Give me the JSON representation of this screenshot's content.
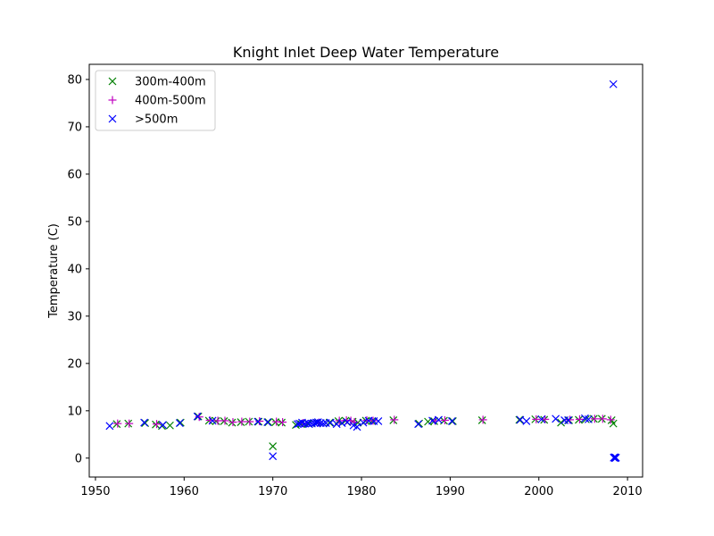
{
  "chart_data": {
    "type": "scatter",
    "title": "Knight Inlet Deep Water Temperature",
    "xlabel": "",
    "ylabel": "Temperature (C)",
    "xlim": [
      1949.3,
      2011.7
    ],
    "ylim": [
      -4.0,
      83.2
    ],
    "xticks": [
      1950,
      1960,
      1970,
      1980,
      1990,
      2000,
      2010
    ],
    "yticks": [
      0,
      10,
      20,
      30,
      40,
      50,
      60,
      70,
      80
    ],
    "grid": false,
    "legend_position": "top-left",
    "series": [
      {
        "name": "300m-400m",
        "marker": "x",
        "color": "#008000",
        "x": [
          1952.4,
          1953.7,
          1955.6,
          1956.8,
          1957.5,
          1958.4,
          1959.6,
          1961.6,
          1962.8,
          1963.6,
          1964.5,
          1965.4,
          1966.4,
          1967.3,
          1968.4,
          1969.5,
          1970.0,
          1970.3,
          1971.0,
          1972.6,
          1973.2,
          1974.0,
          1975.0,
          1976.4,
          1977.4,
          1978.2,
          1979.0,
          1979.6,
          1980.5,
          1981.2,
          1983.6,
          1986.5,
          1987.5,
          1988.2,
          1989.3,
          1990.3,
          1993.6,
          1997.8,
          1999.6,
          2000.6,
          2002.5,
          2003.4,
          2004.5,
          2005.3,
          2006.2,
          2007.1,
          2008.2,
          2008.4
        ],
        "y": [
          7.2,
          7.3,
          7.4,
          7.1,
          6.8,
          6.9,
          7.5,
          8.8,
          7.9,
          7.8,
          7.8,
          7.5,
          7.6,
          7.7,
          7.7,
          7.6,
          2.5,
          7.6,
          7.5,
          7.0,
          7.2,
          7.3,
          7.4,
          7.5,
          7.8,
          7.9,
          7.7,
          7.5,
          7.9,
          7.8,
          8.0,
          7.3,
          7.7,
          7.8,
          7.9,
          7.8,
          8.0,
          8.1,
          8.2,
          8.1,
          7.5,
          8.0,
          8.1,
          8.2,
          8.3,
          8.3,
          8.0,
          7.3
        ]
      },
      {
        "name": "400m-500m",
        "marker": "+",
        "color": "#bf00bf",
        "x": [
          1952.5,
          1953.8,
          1956.9,
          1961.7,
          1962.9,
          1963.8,
          1964.6,
          1965.5,
          1966.5,
          1967.4,
          1968.5,
          1970.4,
          1971.1,
          1973.4,
          1975.2,
          1977.5,
          1978.3,
          1978.8,
          1979.2,
          1980.6,
          1981.3,
          1983.7,
          1988.3,
          1989.4,
          1993.7,
          1999.7,
          2000.7,
          2003.5,
          2004.6,
          2006.3,
          2007.2,
          2008.1
        ],
        "y": [
          7.3,
          7.3,
          7.2,
          8.7,
          8.0,
          7.9,
          7.9,
          7.6,
          7.7,
          7.7,
          7.8,
          7.7,
          7.6,
          7.4,
          7.5,
          7.9,
          8.0,
          7.9,
          7.6,
          8.0,
          7.9,
          8.1,
          7.9,
          8.0,
          8.1,
          8.2,
          8.2,
          8.1,
          8.2,
          8.3,
          8.3,
          8.1
        ]
      },
      {
        "name": ">500m",
        "marker": "x",
        "color": "#0000ff",
        "x": [
          1951.6,
          1955.5,
          1957.6,
          1959.5,
          1961.5,
          1963.2,
          1968.3,
          1969.4,
          1970.0,
          1972.8,
          1973.0,
          1973.3,
          1973.6,
          1973.9,
          1974.1,
          1974.4,
          1974.7,
          1974.9,
          1975.1,
          1975.4,
          1975.7,
          1976.0,
          1976.5,
          1977.2,
          1977.8,
          1978.4,
          1979.1,
          1979.5,
          1980.2,
          1980.8,
          1981.4,
          1981.9,
          1986.4,
          1988.0,
          1988.7,
          1990.2,
          1997.9,
          1998.6,
          2000.3,
          2001.9,
          2002.9,
          2003.3,
          2005.2,
          2005.6,
          2008.4,
          2008.45,
          2008.55,
          2008.6,
          2008.7
        ],
        "y": [
          6.8,
          7.5,
          7.0,
          7.4,
          8.8,
          7.9,
          7.7,
          7.6,
          0.4,
          7.2,
          7.3,
          7.5,
          7.3,
          7.4,
          7.2,
          7.3,
          7.4,
          7.5,
          7.6,
          7.4,
          7.3,
          7.4,
          7.5,
          7.2,
          7.4,
          7.6,
          6.9,
          6.6,
          7.5,
          7.9,
          7.8,
          7.8,
          7.2,
          7.9,
          8.1,
          7.8,
          8.1,
          7.8,
          8.2,
          8.3,
          8.0,
          8.0,
          8.4,
          8.2,
          79.0,
          0.1,
          0.2,
          0.0,
          0.1
        ]
      }
    ]
  }
}
